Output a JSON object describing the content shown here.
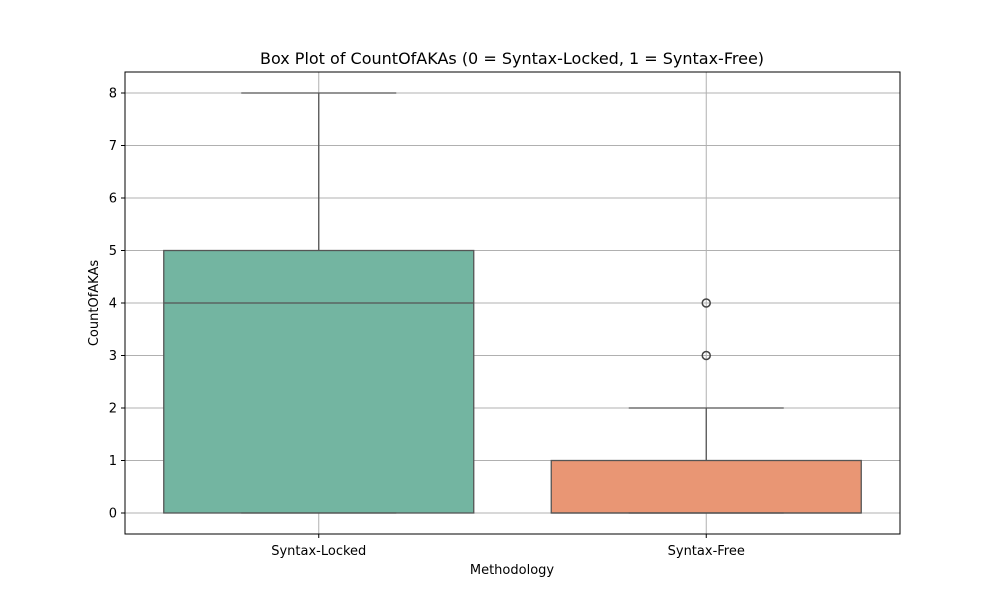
{
  "chart_data": {
    "type": "box",
    "title": "Box Plot of CountOfAKAs (0 = Syntax-Locked, 1 = Syntax-Free)",
    "xlabel": "Methodology",
    "ylabel": "CountOfAKAs",
    "categories": [
      "Syntax-Locked",
      "Syntax-Free"
    ],
    "ylim": [
      -0.4,
      8.4
    ],
    "yticks": [
      0,
      1,
      2,
      3,
      4,
      5,
      6,
      7,
      8
    ],
    "grid": true,
    "boxes": [
      {
        "category": "Syntax-Locked",
        "whisker_low": 0,
        "q1": 0,
        "median": 4,
        "q3": 5,
        "whisker_high": 8,
        "outliers": [],
        "color": "#73b5a1"
      },
      {
        "category": "Syntax-Free",
        "whisker_low": 0,
        "q1": 0,
        "median": 0,
        "q3": 1,
        "whisker_high": 2,
        "outliers": [
          3,
          4
        ],
        "color": "#e99674"
      }
    ]
  },
  "colors": {
    "grid": "#b0b0b0",
    "lines": "#555555",
    "axes": "#000000"
  }
}
